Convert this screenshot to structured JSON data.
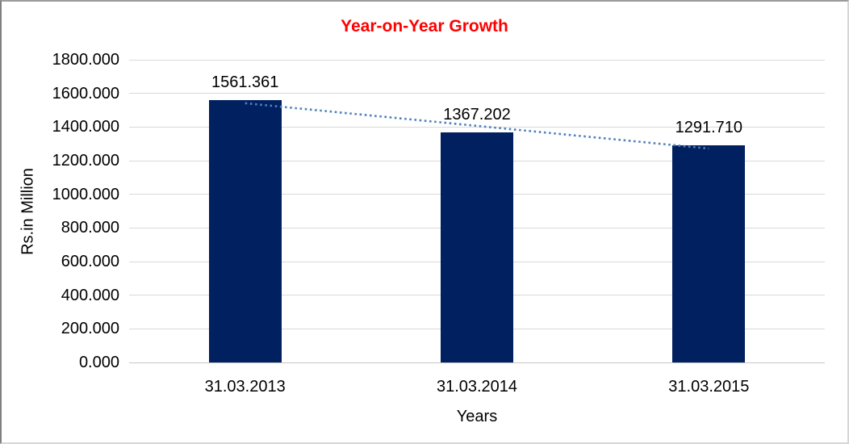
{
  "chart_data": {
    "type": "bar",
    "title": "Year-on-Year Growth",
    "title_color": "#FF0000",
    "xlabel": "Years",
    "ylabel": "Rs.in Million",
    "categories": [
      "31.03.2013",
      "31.03.2014",
      "31.03.2015"
    ],
    "values": [
      1561.361,
      1367.202,
      1291.71
    ],
    "data_labels": [
      "1561.361",
      "1367.202",
      "1291.710"
    ],
    "ylim": [
      0,
      1800
    ],
    "yticks": [
      0,
      200,
      400,
      600,
      800,
      1000,
      1200,
      1400,
      1600,
      1800
    ],
    "ytick_labels": [
      "0.000",
      "200.000",
      "400.000",
      "600.000",
      "800.000",
      "1000.000",
      "1200.000",
      "1400.000",
      "1600.000",
      "1800.000"
    ],
    "grid": true,
    "legend_position": "none",
    "bar_color": "#002060",
    "gridline_color": "#D9D9D9",
    "trendline": {
      "type": "linear",
      "style": "dotted",
      "color": "#4F81BD"
    }
  }
}
